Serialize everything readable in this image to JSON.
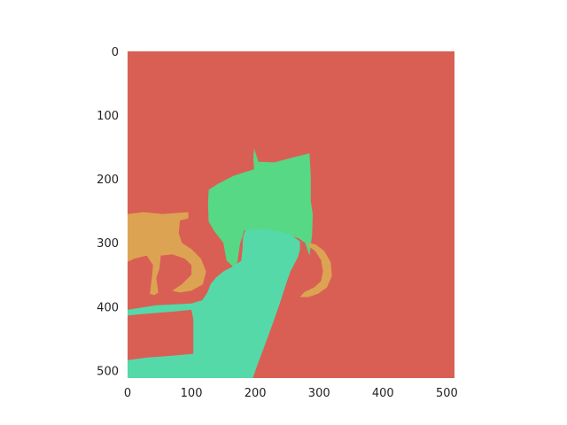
{
  "chart_data": {
    "type": "heatmap",
    "title": "",
    "xlabel": "",
    "ylabel": "",
    "xlim": [
      0,
      512
    ],
    "ylim": [
      512,
      0
    ],
    "x_ticks": [
      0,
      100,
      200,
      300,
      400,
      500
    ],
    "y_ticks": [
      0,
      100,
      200,
      300,
      400,
      500
    ],
    "grid": false,
    "colors": {
      "background": "#d95f55",
      "cat": "#57d884",
      "chair": "#55d9a8",
      "bicycle": "#dca452"
    },
    "regions": [
      {
        "label": "cat",
        "color": "#57d884",
        "polygon": [
          [
            198,
            152
          ],
          [
            205,
            173
          ],
          [
            230,
            174
          ],
          [
            260,
            166
          ],
          [
            285,
            160
          ],
          [
            287,
            196
          ],
          [
            287,
            235
          ],
          [
            290,
            255
          ],
          [
            289,
            287
          ],
          [
            285,
            320
          ],
          [
            278,
            300
          ],
          [
            268,
            293
          ],
          [
            253,
            288
          ],
          [
            220,
            284
          ],
          [
            183,
            280
          ],
          [
            176,
            302
          ],
          [
            172,
            330
          ],
          [
            168,
            340
          ],
          [
            155,
            328
          ],
          [
            150,
            300
          ],
          [
            136,
            282
          ],
          [
            127,
            267
          ],
          [
            126,
            240
          ],
          [
            127,
            217
          ],
          [
            141,
            208
          ],
          [
            166,
            195
          ],
          [
            198,
            185
          ],
          [
            197,
            168
          ]
        ]
      },
      {
        "label": "chair",
        "color": "#55d9a8",
        "polygon": [
          [
            185,
            280
          ],
          [
            205,
            278
          ],
          [
            235,
            281
          ],
          [
            255,
            287
          ],
          [
            270,
            298
          ],
          [
            270,
            310
          ],
          [
            267,
            322
          ],
          [
            255,
            345
          ],
          [
            248,
            365
          ],
          [
            240,
            390
          ],
          [
            228,
            425
          ],
          [
            215,
            460
          ],
          [
            202,
            495
          ],
          [
            196,
            512
          ],
          [
            0,
            512
          ],
          [
            0,
            484
          ],
          [
            30,
            480
          ],
          [
            70,
            477
          ],
          [
            103,
            474
          ],
          [
            103,
            420
          ],
          [
            100,
            405
          ],
          [
            70,
            408
          ],
          [
            20,
            412
          ],
          [
            0,
            414
          ],
          [
            0,
            405
          ],
          [
            45,
            398
          ],
          [
            100,
            395
          ],
          [
            117,
            390
          ],
          [
            125,
            378
          ],
          [
            130,
            365
          ],
          [
            138,
            355
          ],
          [
            150,
            345
          ],
          [
            163,
            338
          ],
          [
            178,
            328
          ],
          [
            180,
            310
          ],
          [
            181,
            290
          ]
        ]
      },
      {
        "label": "bicycle",
        "color": "#dca452",
        "polygon": [
          [
            0,
            255
          ],
          [
            25,
            252
          ],
          [
            55,
            255
          ],
          [
            95,
            252
          ],
          [
            95,
            262
          ],
          [
            82,
            265
          ],
          [
            80,
            285
          ],
          [
            85,
            300
          ],
          [
            100,
            310
          ],
          [
            115,
            325
          ],
          [
            123,
            345
          ],
          [
            118,
            365
          ],
          [
            100,
            375
          ],
          [
            82,
            378
          ],
          [
            70,
            375
          ],
          [
            85,
            365
          ],
          [
            100,
            350
          ],
          [
            100,
            335
          ],
          [
            90,
            325
          ],
          [
            70,
            318
          ],
          [
            52,
            320
          ],
          [
            50,
            340
          ],
          [
            45,
            355
          ],
          [
            48,
            378
          ],
          [
            42,
            382
          ],
          [
            35,
            380
          ],
          [
            38,
            355
          ],
          [
            40,
            335
          ],
          [
            30,
            320
          ],
          [
            10,
            325
          ],
          [
            0,
            330
          ]
        ]
      },
      {
        "label": "bicycle",
        "color": "#dca452",
        "polygon": [
          [
            284,
            300
          ],
          [
            295,
            303
          ],
          [
            308,
            313
          ],
          [
            318,
            330
          ],
          [
            320,
            352
          ],
          [
            312,
            370
          ],
          [
            298,
            380
          ],
          [
            283,
            385
          ],
          [
            270,
            385
          ],
          [
            277,
            377
          ],
          [
            292,
            370
          ],
          [
            303,
            360
          ],
          [
            306,
            345
          ],
          [
            303,
            327
          ],
          [
            294,
            313
          ],
          [
            283,
            305
          ]
        ]
      }
    ]
  }
}
